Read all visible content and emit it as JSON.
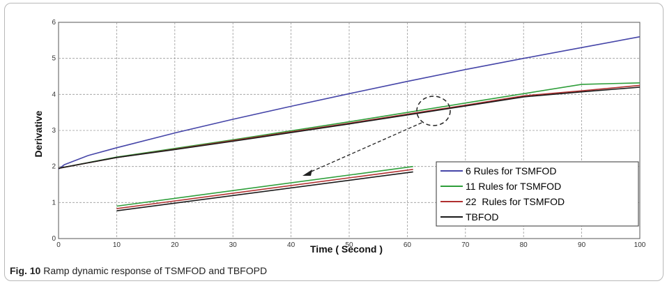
{
  "caption": {
    "label": "Fig. 10",
    "text": "Ramp dynamic response of TSMFOD and TBFOPD"
  },
  "chart_data": {
    "type": "line",
    "title": "",
    "xlabel": "Time ( Second )",
    "ylabel": "Derivative",
    "xlim": [
      0,
      100
    ],
    "ylim": [
      0,
      6
    ],
    "xticks": [
      0,
      10,
      20,
      30,
      40,
      50,
      60,
      70,
      80,
      90,
      100
    ],
    "yticks": [
      0,
      1,
      2,
      3,
      4,
      5,
      6
    ],
    "grid": true,
    "legend_position": "bottom-right",
    "series": [
      {
        "name": "6 Rules for TSMFOD",
        "color": "#4545a8",
        "x": [
          0,
          1,
          5,
          10,
          20,
          30,
          40,
          50,
          60,
          70,
          80,
          90,
          100
        ],
        "y": [
          1.93,
          2.05,
          2.3,
          2.52,
          2.93,
          3.31,
          3.67,
          4.02,
          4.36,
          4.69,
          5.0,
          5.3,
          5.6
        ]
      },
      {
        "name": "11 Rules for TSMFOD",
        "color": "#2e9e3a",
        "x": [
          0,
          10,
          20,
          30,
          40,
          50,
          60,
          70,
          80,
          90,
          100
        ],
        "y": [
          1.95,
          2.26,
          2.5,
          2.74,
          2.99,
          3.24,
          3.5,
          3.76,
          4.02,
          4.28,
          4.32
        ]
      },
      {
        "name": "22  Rules for TSMFOD",
        "color": "#b03030",
        "x": [
          0,
          10,
          20,
          30,
          40,
          50,
          60,
          70,
          80,
          90,
          100
        ],
        "y": [
          1.95,
          2.25,
          2.48,
          2.72,
          2.96,
          3.2,
          3.45,
          3.7,
          3.96,
          4.1,
          4.25
        ]
      },
      {
        "name": "TBFOD",
        "color": "#1a1a1a",
        "x": [
          0,
          10,
          20,
          30,
          40,
          50,
          60,
          70,
          80,
          90,
          100
        ],
        "y": [
          1.95,
          2.25,
          2.47,
          2.7,
          2.94,
          3.18,
          3.43,
          3.68,
          3.93,
          4.07,
          4.2
        ]
      }
    ],
    "inset_series": [
      {
        "name": "11 Rules for TSMFOD",
        "color": "#2e9e3a",
        "x": [
          10,
          61
        ],
        "y": [
          0.9,
          2.0
        ]
      },
      {
        "name": "22  Rules for TSMFOD",
        "color": "#b03030",
        "x": [
          10,
          61
        ],
        "y": [
          0.83,
          1.92
        ]
      },
      {
        "name": "TBFOD",
        "color": "#1a1a1a",
        "x": [
          10,
          61
        ],
        "y": [
          0.77,
          1.85
        ]
      }
    ]
  }
}
